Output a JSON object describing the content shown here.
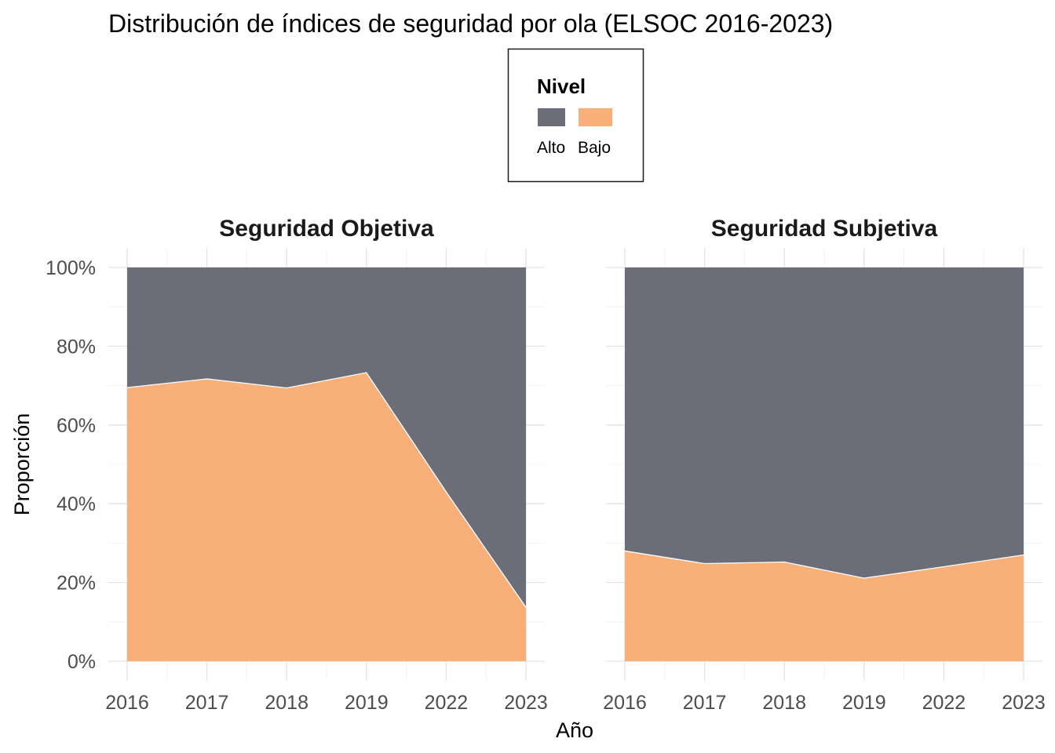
{
  "chart_data": {
    "type": "area",
    "stacked": "fill",
    "title": "Distribución de índices de seguridad por ola (ELSOC 2016-2023)",
    "xlabel": "Año",
    "ylabel": "Proporción",
    "ylim": [
      0,
      1
    ],
    "y_ticks": [
      "0%",
      "20%",
      "40%",
      "60%",
      "80%",
      "100%"
    ],
    "x": [
      "2016",
      "2017",
      "2018",
      "2019",
      "2022",
      "2023"
    ],
    "legend": {
      "title": "Nivel",
      "position": "top",
      "items": [
        {
          "label": "Alto",
          "color": "#6b6e78"
        },
        {
          "label": "Bajo",
          "color": "#f8af78"
        }
      ]
    },
    "grid": true,
    "panels": [
      {
        "title": "Seguridad Objetiva",
        "series": [
          {
            "name": "Bajo",
            "values": [
              0.695,
              0.717,
              0.694,
              0.733,
              0.43,
              0.137
            ]
          },
          {
            "name": "Alto",
            "values": [
              0.305,
              0.283,
              0.306,
              0.267,
              0.57,
              0.863
            ]
          }
        ]
      },
      {
        "title": "Seguridad Subjetiva",
        "series": [
          {
            "name": "Bajo",
            "values": [
              0.28,
              0.248,
              0.252,
              0.211,
              0.24,
              0.27
            ]
          },
          {
            "name": "Alto",
            "values": [
              0.72,
              0.752,
              0.748,
              0.789,
              0.76,
              0.73
            ]
          }
        ]
      }
    ]
  }
}
